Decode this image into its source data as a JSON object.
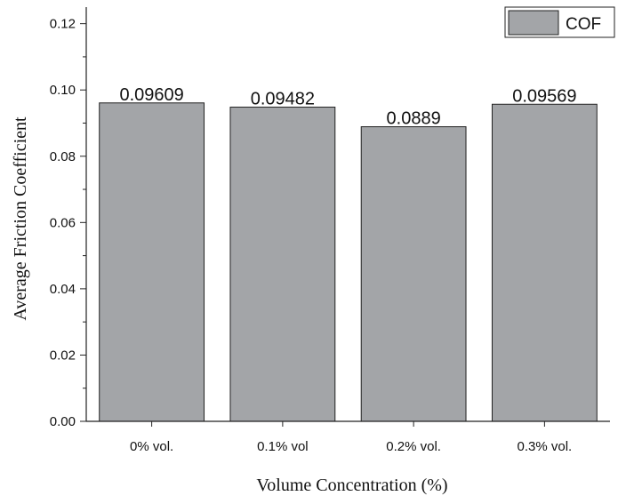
{
  "chart_data": {
    "type": "bar",
    "categories": [
      "0% vol.",
      "0.1% vol",
      "0.2% vol.",
      "0.3% vol."
    ],
    "series": [
      {
        "name": "COF",
        "values": [
          0.09609,
          0.09482,
          0.0889,
          0.09569
        ],
        "color": "#a3a5a8"
      }
    ],
    "data_labels": [
      "0.09609",
      "0.09482",
      "0.0889",
      "0.09569"
    ],
    "xlabel": "Volume Concentration (%)",
    "ylabel": "Average Friction Coefficient",
    "ylim": [
      0,
      0.125
    ],
    "yticks": [
      0.0,
      0.02,
      0.04,
      0.06,
      0.08,
      0.1,
      0.12
    ],
    "ytick_labels": [
      "0.00",
      "0.02",
      "0.04",
      "0.06",
      "0.08",
      "0.10",
      "0.12"
    ],
    "legend": {
      "position": "top-right",
      "entries": [
        "COF"
      ]
    },
    "grid": false
  }
}
